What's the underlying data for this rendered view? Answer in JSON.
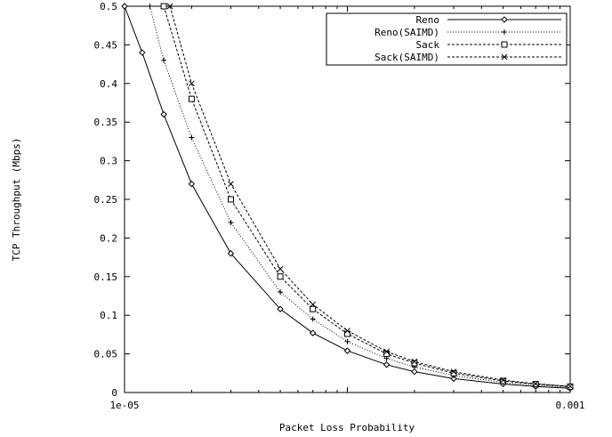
{
  "chart_data": {
    "type": "line",
    "title": "",
    "xlabel": "Packet Loss Probability",
    "ylabel": "TCP Throughput (Mbps)",
    "x_scale": "log",
    "xlim": [
      1e-05,
      0.001
    ],
    "ylim": [
      0,
      0.5
    ],
    "x_tick_labels": [
      "1e-05",
      "0.001"
    ],
    "y_tick_labels": [
      "0",
      "0.05",
      "0.1",
      "0.15",
      "0.2",
      "0.25",
      "0.3",
      "0.35",
      "0.4",
      "0.45",
      "0.5"
    ],
    "grid": false,
    "legend_position": "top-right",
    "series": [
      {
        "name": "Reno",
        "line_style": "solid",
        "marker": "diamond",
        "x": [
          1e-05,
          1.2e-05,
          1.5e-05,
          2e-05,
          3e-05,
          5e-05,
          7e-05,
          0.0001,
          0.00015,
          0.0002,
          0.0003,
          0.0005,
          0.0007,
          0.001
        ],
        "y": [
          0.5,
          0.44,
          0.36,
          0.27,
          0.18,
          0.108,
          0.077,
          0.054,
          0.036,
          0.027,
          0.018,
          0.011,
          0.0077,
          0.0054
        ]
      },
      {
        "name": "Reno(SAIMD)",
        "line_style": "dotted",
        "marker": "plus",
        "x": [
          1.3e-05,
          1.5e-05,
          2e-05,
          3e-05,
          5e-05,
          7e-05,
          0.0001,
          0.00015,
          0.0002,
          0.0003,
          0.0005,
          0.0007,
          0.001
        ],
        "y": [
          0.5,
          0.43,
          0.33,
          0.22,
          0.13,
          0.095,
          0.066,
          0.044,
          0.033,
          0.022,
          0.013,
          0.0095,
          0.0066
        ]
      },
      {
        "name": "Sack",
        "line_style": "dashed",
        "marker": "square",
        "x": [
          1.5e-05,
          2e-05,
          3e-05,
          5e-05,
          7e-05,
          0.0001,
          0.00015,
          0.0002,
          0.0003,
          0.0005,
          0.0007,
          0.001
        ],
        "y": [
          0.5,
          0.38,
          0.25,
          0.15,
          0.108,
          0.076,
          0.05,
          0.038,
          0.025,
          0.015,
          0.0108,
          0.0076
        ]
      },
      {
        "name": "Sack(SAIMD)",
        "line_style": "dashed",
        "marker": "cross",
        "x": [
          1.6e-05,
          2e-05,
          3e-05,
          5e-05,
          7e-05,
          0.0001,
          0.00015,
          0.0002,
          0.0003,
          0.0005,
          0.0007,
          0.001
        ],
        "y": [
          0.5,
          0.4,
          0.27,
          0.16,
          0.114,
          0.08,
          0.053,
          0.04,
          0.027,
          0.016,
          0.0114,
          0.008
        ]
      }
    ]
  }
}
